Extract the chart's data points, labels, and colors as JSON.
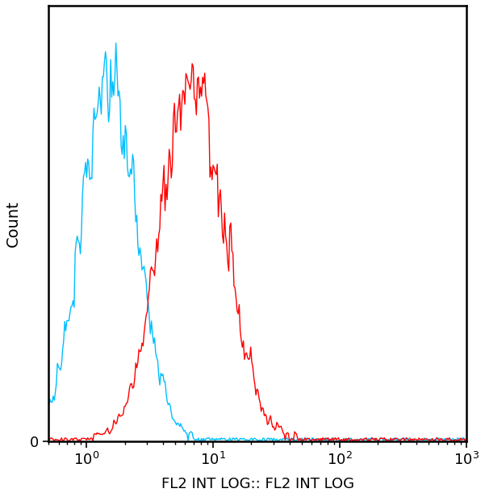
{
  "xlabel": "FL2 INT LOG:: FL2 INT LOG",
  "ylabel": "Count",
  "xlim_min": 0.5,
  "xlim_max": 1000,
  "ylim_bottom": 0,
  "ylim_top": 1000,
  "cyan_color": "#00BFFF",
  "red_color": "#FF0000",
  "background_color": "#FFFFFF",
  "cyan_peak_log": 0.18,
  "cyan_peak_sigma": 0.22,
  "red_peak_log": 0.85,
  "red_peak_sigma": 0.25,
  "line_width": 1.0,
  "n_bins": 400,
  "n_cells": 10000,
  "seed": 12
}
